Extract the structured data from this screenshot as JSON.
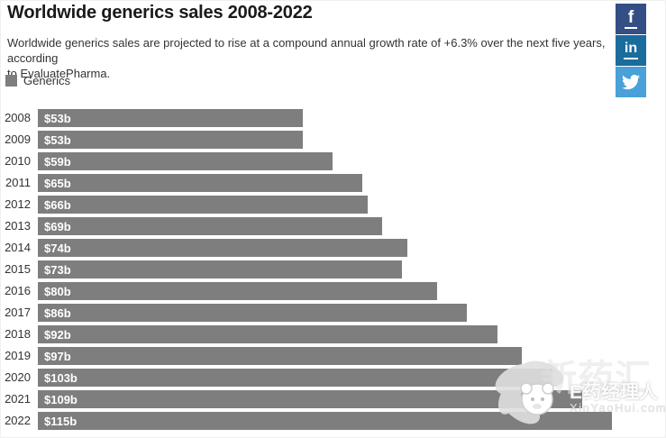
{
  "page": {
    "title": "Worldwide generics sales 2008-2022",
    "subtitle_line1": "Worldwide generics sales are projected to rise at a compound annual growth rate of +6.3% over the next five years, according",
    "subtitle_line2": "to EvaluatePharma."
  },
  "legend": {
    "label": "Generics",
    "swatch_color": "#7e7e7e"
  },
  "social_buttons": [
    {
      "name": "facebook",
      "glyph": "f",
      "color": "#344e86"
    },
    {
      "name": "linkedin",
      "glyph": "in",
      "color": "#1a6c9c"
    },
    {
      "name": "twitter",
      "glyph": "twitter-bird",
      "color": "#4aa0d8"
    }
  ],
  "chart_data": {
    "type": "bar",
    "orientation": "horizontal",
    "title": "Worldwide generics sales 2008-2022",
    "subtitle": "Worldwide generics sales are projected to rise at a compound annual growth rate of +6.3% over the next five years, according to EvaluatePharma.",
    "categories": [
      "2008",
      "2009",
      "2010",
      "2011",
      "2012",
      "2013",
      "2014",
      "2015",
      "2016",
      "2017",
      "2018",
      "2019",
      "2020",
      "2021",
      "2022"
    ],
    "series": [
      {
        "name": "Generics",
        "color": "#7e7e7e",
        "values": [
          53,
          53,
          59,
          65,
          66,
          69,
          74,
          73,
          80,
          86,
          92,
          97,
          103,
          109,
          115
        ]
      }
    ],
    "data_labels": [
      "$53b",
      "$53b",
      "$59b",
      "$65b",
      "$66b",
      "$69b",
      "$74b",
      "$73b",
      "$80b",
      "$86b",
      "$92b",
      "$97b",
      "$103b",
      "$109b",
      "$115b"
    ],
    "xlim": [
      0,
      126
    ],
    "xlabel": "",
    "ylabel": "",
    "grid": false,
    "legend_position": "top-left",
    "value_label_color": "#ffffff",
    "category_label_color": "#333333"
  },
  "watermark": {
    "brand": "E药经理人",
    "background_text": "新药汇",
    "url": "XinYaoHui.com"
  }
}
